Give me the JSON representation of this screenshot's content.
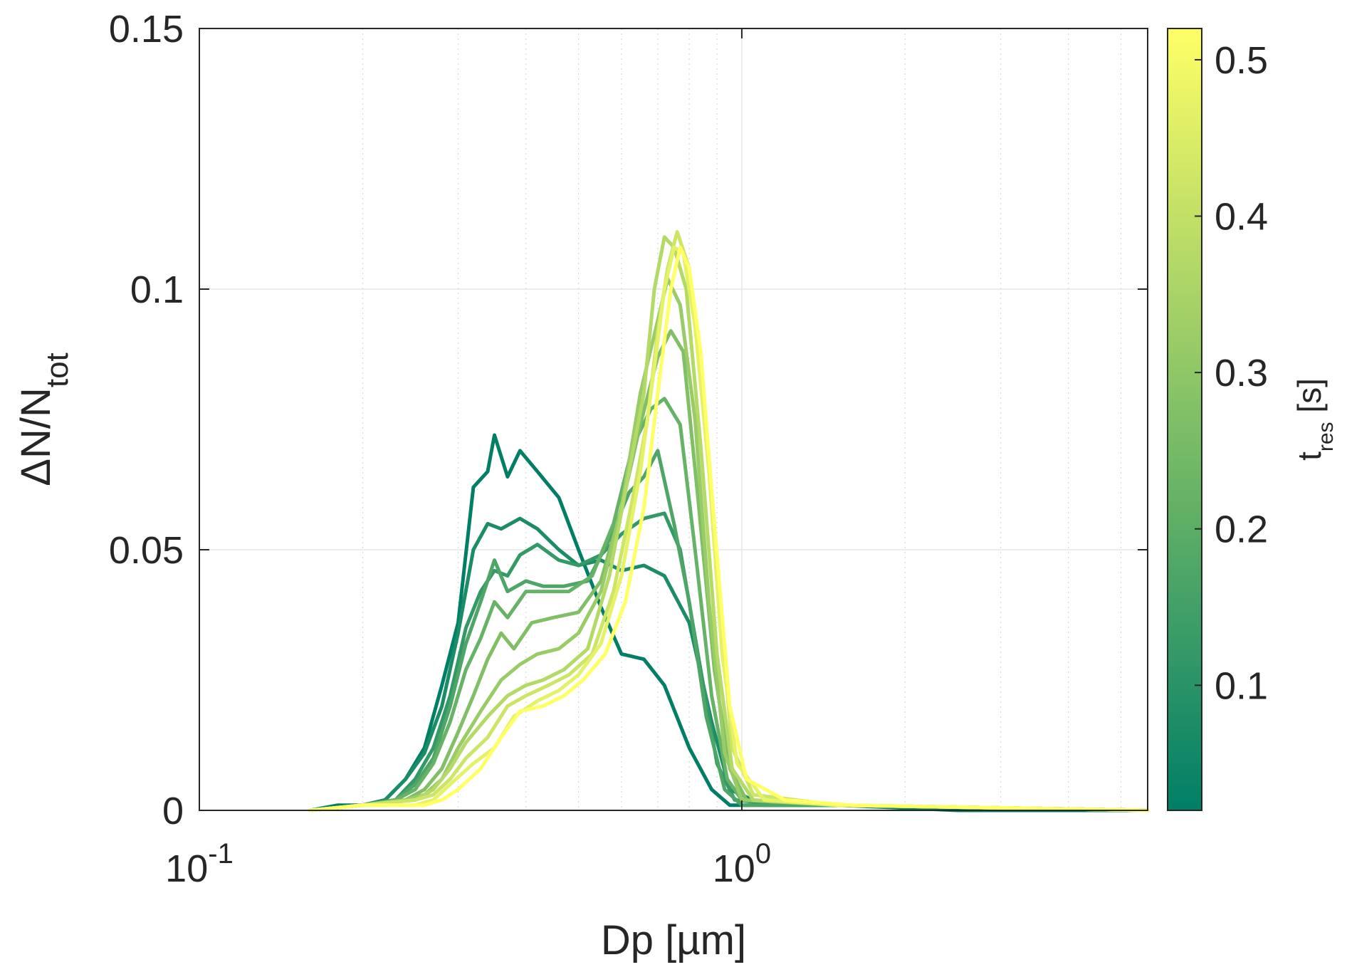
{
  "chart_data": {
    "type": "line",
    "xlabel": "Dp [µm]",
    "ylabel": {
      "main": "ΔN/N",
      "sub": "tot"
    },
    "x_scale": "log",
    "xlim": [
      0.1,
      5.6
    ],
    "ylim": [
      0,
      0.15
    ],
    "x_ticks": [
      {
        "value": 0.1,
        "base": "10",
        "exp": "-1"
      },
      {
        "value": 1,
        "base": "10",
        "exp": "0"
      }
    ],
    "y_ticks": [
      {
        "value": 0,
        "label": "0"
      },
      {
        "value": 0.05,
        "label": "0.05"
      },
      {
        "value": 0.1,
        "label": "0.1"
      },
      {
        "value": 0.15,
        "label": "0.15"
      }
    ],
    "grid": true,
    "colorbar": {
      "label": {
        "main": "t",
        "sub": "res",
        "suffix": " [s]"
      },
      "range": [
        0.02,
        0.52
      ],
      "ticks": [
        {
          "value": 0.1,
          "label": "0.1"
        },
        {
          "value": 0.2,
          "label": "0.2"
        },
        {
          "value": 0.3,
          "label": "0.3"
        },
        {
          "value": 0.4,
          "label": "0.4"
        },
        {
          "value": 0.5,
          "label": "0.5"
        }
      ],
      "colormap": [
        "#007f66",
        "#ffff66"
      ]
    },
    "series": [
      {
        "t": 0.02,
        "points": [
          [
            0.16,
            0
          ],
          [
            0.18,
            0.001
          ],
          [
            0.2,
            0.001
          ],
          [
            0.22,
            0.002
          ],
          [
            0.24,
            0.006
          ],
          [
            0.26,
            0.012
          ],
          [
            0.28,
            0.024
          ],
          [
            0.3,
            0.036
          ],
          [
            0.32,
            0.062
          ],
          [
            0.34,
            0.065
          ],
          [
            0.35,
            0.072
          ],
          [
            0.37,
            0.064
          ],
          [
            0.39,
            0.069
          ],
          [
            0.42,
            0.065
          ],
          [
            0.46,
            0.06
          ],
          [
            0.5,
            0.05
          ],
          [
            0.55,
            0.039
          ],
          [
            0.6,
            0.03
          ],
          [
            0.66,
            0.029
          ],
          [
            0.72,
            0.024
          ],
          [
            0.8,
            0.012
          ],
          [
            0.88,
            0.004
          ],
          [
            0.95,
            0.001
          ],
          [
            1.1,
            0.001
          ],
          [
            1.5,
            0.001
          ],
          [
            2.5,
            0
          ],
          [
            5.6,
            0
          ]
        ]
      },
      {
        "t": 0.07,
        "points": [
          [
            0.16,
            0
          ],
          [
            0.2,
            0.001
          ],
          [
            0.22,
            0.002
          ],
          [
            0.24,
            0.006
          ],
          [
            0.26,
            0.011
          ],
          [
            0.28,
            0.02
          ],
          [
            0.3,
            0.034
          ],
          [
            0.32,
            0.05
          ],
          [
            0.34,
            0.055
          ],
          [
            0.36,
            0.054
          ],
          [
            0.39,
            0.056
          ],
          [
            0.42,
            0.054
          ],
          [
            0.46,
            0.05
          ],
          [
            0.5,
            0.047
          ],
          [
            0.55,
            0.048
          ],
          [
            0.6,
            0.046
          ],
          [
            0.66,
            0.047
          ],
          [
            0.72,
            0.045
          ],
          [
            0.8,
            0.036
          ],
          [
            0.88,
            0.017
          ],
          [
            0.95,
            0.004
          ],
          [
            1.1,
            0.001
          ],
          [
            1.5,
            0.001
          ],
          [
            5.6,
            0
          ]
        ]
      },
      {
        "t": 0.12,
        "points": [
          [
            0.16,
            0
          ],
          [
            0.2,
            0.001
          ],
          [
            0.23,
            0.002
          ],
          [
            0.25,
            0.006
          ],
          [
            0.27,
            0.012
          ],
          [
            0.29,
            0.022
          ],
          [
            0.31,
            0.035
          ],
          [
            0.33,
            0.042
          ],
          [
            0.35,
            0.046
          ],
          [
            0.37,
            0.045
          ],
          [
            0.39,
            0.049
          ],
          [
            0.42,
            0.051
          ],
          [
            0.46,
            0.048
          ],
          [
            0.5,
            0.047
          ],
          [
            0.55,
            0.049
          ],
          [
            0.6,
            0.053
          ],
          [
            0.66,
            0.056
          ],
          [
            0.72,
            0.057
          ],
          [
            0.77,
            0.05
          ],
          [
            0.83,
            0.03
          ],
          [
            0.9,
            0.009
          ],
          [
            0.97,
            0.002
          ],
          [
            1.2,
            0.001
          ],
          [
            1.5,
            0.001
          ],
          [
            5.6,
            0
          ]
        ]
      },
      {
        "t": 0.17,
        "points": [
          [
            0.16,
            0
          ],
          [
            0.2,
            0.001
          ],
          [
            0.23,
            0.002
          ],
          [
            0.25,
            0.005
          ],
          [
            0.27,
            0.01
          ],
          [
            0.29,
            0.02
          ],
          [
            0.31,
            0.032
          ],
          [
            0.33,
            0.04
          ],
          [
            0.35,
            0.048
          ],
          [
            0.37,
            0.042
          ],
          [
            0.4,
            0.044
          ],
          [
            0.43,
            0.043
          ],
          [
            0.47,
            0.043
          ],
          [
            0.52,
            0.044
          ],
          [
            0.57,
            0.052
          ],
          [
            0.62,
            0.061
          ],
          [
            0.66,
            0.064
          ],
          [
            0.7,
            0.069
          ],
          [
            0.75,
            0.055
          ],
          [
            0.8,
            0.04
          ],
          [
            0.86,
            0.018
          ],
          [
            0.93,
            0.004
          ],
          [
            1.0,
            0.001
          ],
          [
            1.5,
            0.001
          ],
          [
            5.6,
            0
          ]
        ]
      },
      {
        "t": 0.22,
        "points": [
          [
            0.16,
            0
          ],
          [
            0.2,
            0.001
          ],
          [
            0.23,
            0.002
          ],
          [
            0.25,
            0.004
          ],
          [
            0.27,
            0.009
          ],
          [
            0.29,
            0.017
          ],
          [
            0.31,
            0.027
          ],
          [
            0.33,
            0.033
          ],
          [
            0.35,
            0.04
          ],
          [
            0.37,
            0.037
          ],
          [
            0.4,
            0.042
          ],
          [
            0.44,
            0.042
          ],
          [
            0.48,
            0.042
          ],
          [
            0.53,
            0.045
          ],
          [
            0.58,
            0.055
          ],
          [
            0.63,
            0.07
          ],
          [
            0.68,
            0.077
          ],
          [
            0.72,
            0.079
          ],
          [
            0.77,
            0.074
          ],
          [
            0.82,
            0.05
          ],
          [
            0.88,
            0.022
          ],
          [
            0.94,
            0.006
          ],
          [
            1.0,
            0.002
          ],
          [
            1.5,
            0.001
          ],
          [
            5.6,
            0
          ]
        ]
      },
      {
        "t": 0.27,
        "points": [
          [
            0.16,
            0
          ],
          [
            0.2,
            0.001
          ],
          [
            0.24,
            0.002
          ],
          [
            0.26,
            0.004
          ],
          [
            0.28,
            0.008
          ],
          [
            0.3,
            0.015
          ],
          [
            0.32,
            0.022
          ],
          [
            0.34,
            0.029
          ],
          [
            0.36,
            0.034
          ],
          [
            0.38,
            0.031
          ],
          [
            0.41,
            0.036
          ],
          [
            0.45,
            0.037
          ],
          [
            0.5,
            0.038
          ],
          [
            0.55,
            0.044
          ],
          [
            0.6,
            0.058
          ],
          [
            0.65,
            0.074
          ],
          [
            0.7,
            0.087
          ],
          [
            0.74,
            0.092
          ],
          [
            0.78,
            0.088
          ],
          [
            0.83,
            0.06
          ],
          [
            0.89,
            0.027
          ],
          [
            0.95,
            0.008
          ],
          [
            1.02,
            0.002
          ],
          [
            1.5,
            0.001
          ],
          [
            5.6,
            0
          ]
        ]
      },
      {
        "t": 0.32,
        "points": [
          [
            0.16,
            0
          ],
          [
            0.2,
            0.001
          ],
          [
            0.24,
            0.002
          ],
          [
            0.26,
            0.003
          ],
          [
            0.28,
            0.006
          ],
          [
            0.3,
            0.012
          ],
          [
            0.33,
            0.019
          ],
          [
            0.36,
            0.025
          ],
          [
            0.39,
            0.028
          ],
          [
            0.42,
            0.03
          ],
          [
            0.46,
            0.031
          ],
          [
            0.5,
            0.034
          ],
          [
            0.55,
            0.042
          ],
          [
            0.6,
            0.058
          ],
          [
            0.65,
            0.08
          ],
          [
            0.7,
            0.094
          ],
          [
            0.73,
            0.102
          ],
          [
            0.77,
            0.097
          ],
          [
            0.82,
            0.075
          ],
          [
            0.87,
            0.04
          ],
          [
            0.93,
            0.011
          ],
          [
            1.0,
            0.002
          ],
          [
            1.5,
            0.001
          ],
          [
            5.6,
            0
          ]
        ]
      },
      {
        "t": 0.37,
        "points": [
          [
            0.16,
            0
          ],
          [
            0.2,
            0.001
          ],
          [
            0.25,
            0.002
          ],
          [
            0.27,
            0.004
          ],
          [
            0.29,
            0.008
          ],
          [
            0.31,
            0.013
          ],
          [
            0.34,
            0.018
          ],
          [
            0.37,
            0.022
          ],
          [
            0.4,
            0.024
          ],
          [
            0.43,
            0.025
          ],
          [
            0.47,
            0.027
          ],
          [
            0.52,
            0.031
          ],
          [
            0.57,
            0.045
          ],
          [
            0.62,
            0.065
          ],
          [
            0.66,
            0.08
          ],
          [
            0.69,
            0.1
          ],
          [
            0.72,
            0.11
          ],
          [
            0.75,
            0.108
          ],
          [
            0.79,
            0.1
          ],
          [
            0.84,
            0.07
          ],
          [
            0.9,
            0.03
          ],
          [
            0.96,
            0.008
          ],
          [
            1.05,
            0.002
          ],
          [
            1.5,
            0.001
          ],
          [
            5.6,
            0
          ]
        ]
      },
      {
        "t": 0.42,
        "points": [
          [
            0.16,
            0
          ],
          [
            0.2,
            0.001
          ],
          [
            0.25,
            0.002
          ],
          [
            0.27,
            0.003
          ],
          [
            0.29,
            0.006
          ],
          [
            0.31,
            0.01
          ],
          [
            0.34,
            0.014
          ],
          [
            0.37,
            0.02
          ],
          [
            0.4,
            0.022
          ],
          [
            0.44,
            0.024
          ],
          [
            0.48,
            0.026
          ],
          [
            0.53,
            0.03
          ],
          [
            0.58,
            0.042
          ],
          [
            0.63,
            0.06
          ],
          [
            0.67,
            0.075
          ],
          [
            0.7,
            0.092
          ],
          [
            0.73,
            0.104
          ],
          [
            0.76,
            0.111
          ],
          [
            0.8,
            0.104
          ],
          [
            0.85,
            0.08
          ],
          [
            0.9,
            0.045
          ],
          [
            0.96,
            0.012
          ],
          [
            1.05,
            0.003
          ],
          [
            1.5,
            0.001
          ],
          [
            5.6,
            0
          ]
        ]
      },
      {
        "t": 0.47,
        "points": [
          [
            0.16,
            0
          ],
          [
            0.2,
            0.001
          ],
          [
            0.25,
            0.001
          ],
          [
            0.27,
            0.002
          ],
          [
            0.29,
            0.005
          ],
          [
            0.32,
            0.009
          ],
          [
            0.35,
            0.012
          ],
          [
            0.38,
            0.018
          ],
          [
            0.42,
            0.021
          ],
          [
            0.46,
            0.023
          ],
          [
            0.5,
            0.026
          ],
          [
            0.55,
            0.032
          ],
          [
            0.6,
            0.045
          ],
          [
            0.65,
            0.065
          ],
          [
            0.69,
            0.085
          ],
          [
            0.72,
            0.1
          ],
          [
            0.75,
            0.108
          ],
          [
            0.78,
            0.107
          ],
          [
            0.82,
            0.093
          ],
          [
            0.87,
            0.065
          ],
          [
            0.92,
            0.03
          ],
          [
            0.98,
            0.009
          ],
          [
            1.1,
            0.002
          ],
          [
            1.5,
            0.001
          ],
          [
            5.6,
            0
          ]
        ]
      },
      {
        "t": 0.52,
        "points": [
          [
            0.16,
            0
          ],
          [
            0.2,
            0.001
          ],
          [
            0.26,
            0.001
          ],
          [
            0.28,
            0.002
          ],
          [
            0.3,
            0.004
          ],
          [
            0.33,
            0.008
          ],
          [
            0.36,
            0.014
          ],
          [
            0.39,
            0.019
          ],
          [
            0.43,
            0.02
          ],
          [
            0.47,
            0.022
          ],
          [
            0.51,
            0.025
          ],
          [
            0.56,
            0.03
          ],
          [
            0.61,
            0.04
          ],
          [
            0.66,
            0.058
          ],
          [
            0.7,
            0.08
          ],
          [
            0.74,
            0.1
          ],
          [
            0.77,
            0.108
          ],
          [
            0.8,
            0.104
          ],
          [
            0.84,
            0.088
          ],
          [
            0.89,
            0.055
          ],
          [
            0.95,
            0.02
          ],
          [
            1.02,
            0.006
          ],
          [
            1.2,
            0.002
          ],
          [
            1.6,
            0.001
          ],
          [
            5.6,
            0
          ]
        ]
      }
    ]
  }
}
